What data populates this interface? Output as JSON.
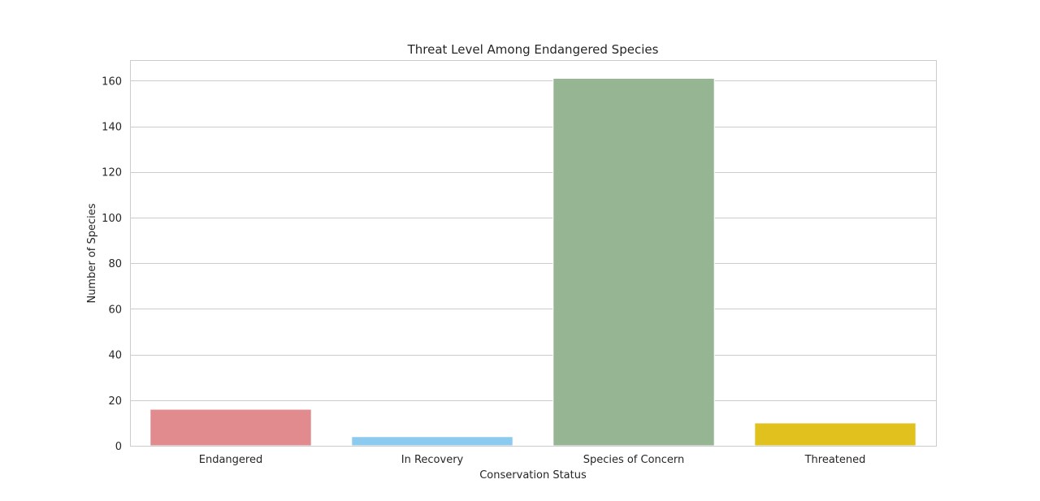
{
  "chart_data": {
    "type": "bar",
    "title": "Threat Level Among Endangered Species",
    "xlabel": "Conservation Status",
    "ylabel": "Number of Species",
    "categories": [
      "Endangered",
      "In Recovery",
      "Species of Concern",
      "Threatened"
    ],
    "values": [
      16,
      4,
      161,
      10
    ],
    "colors": [
      "#e18b8e",
      "#8ccbef",
      "#95b593",
      "#e0c11d"
    ],
    "ylim": [
      0,
      169
    ],
    "yticks": [
      0,
      20,
      40,
      60,
      80,
      100,
      120,
      140,
      160
    ],
    "grid": true,
    "grid_axis": "y"
  }
}
